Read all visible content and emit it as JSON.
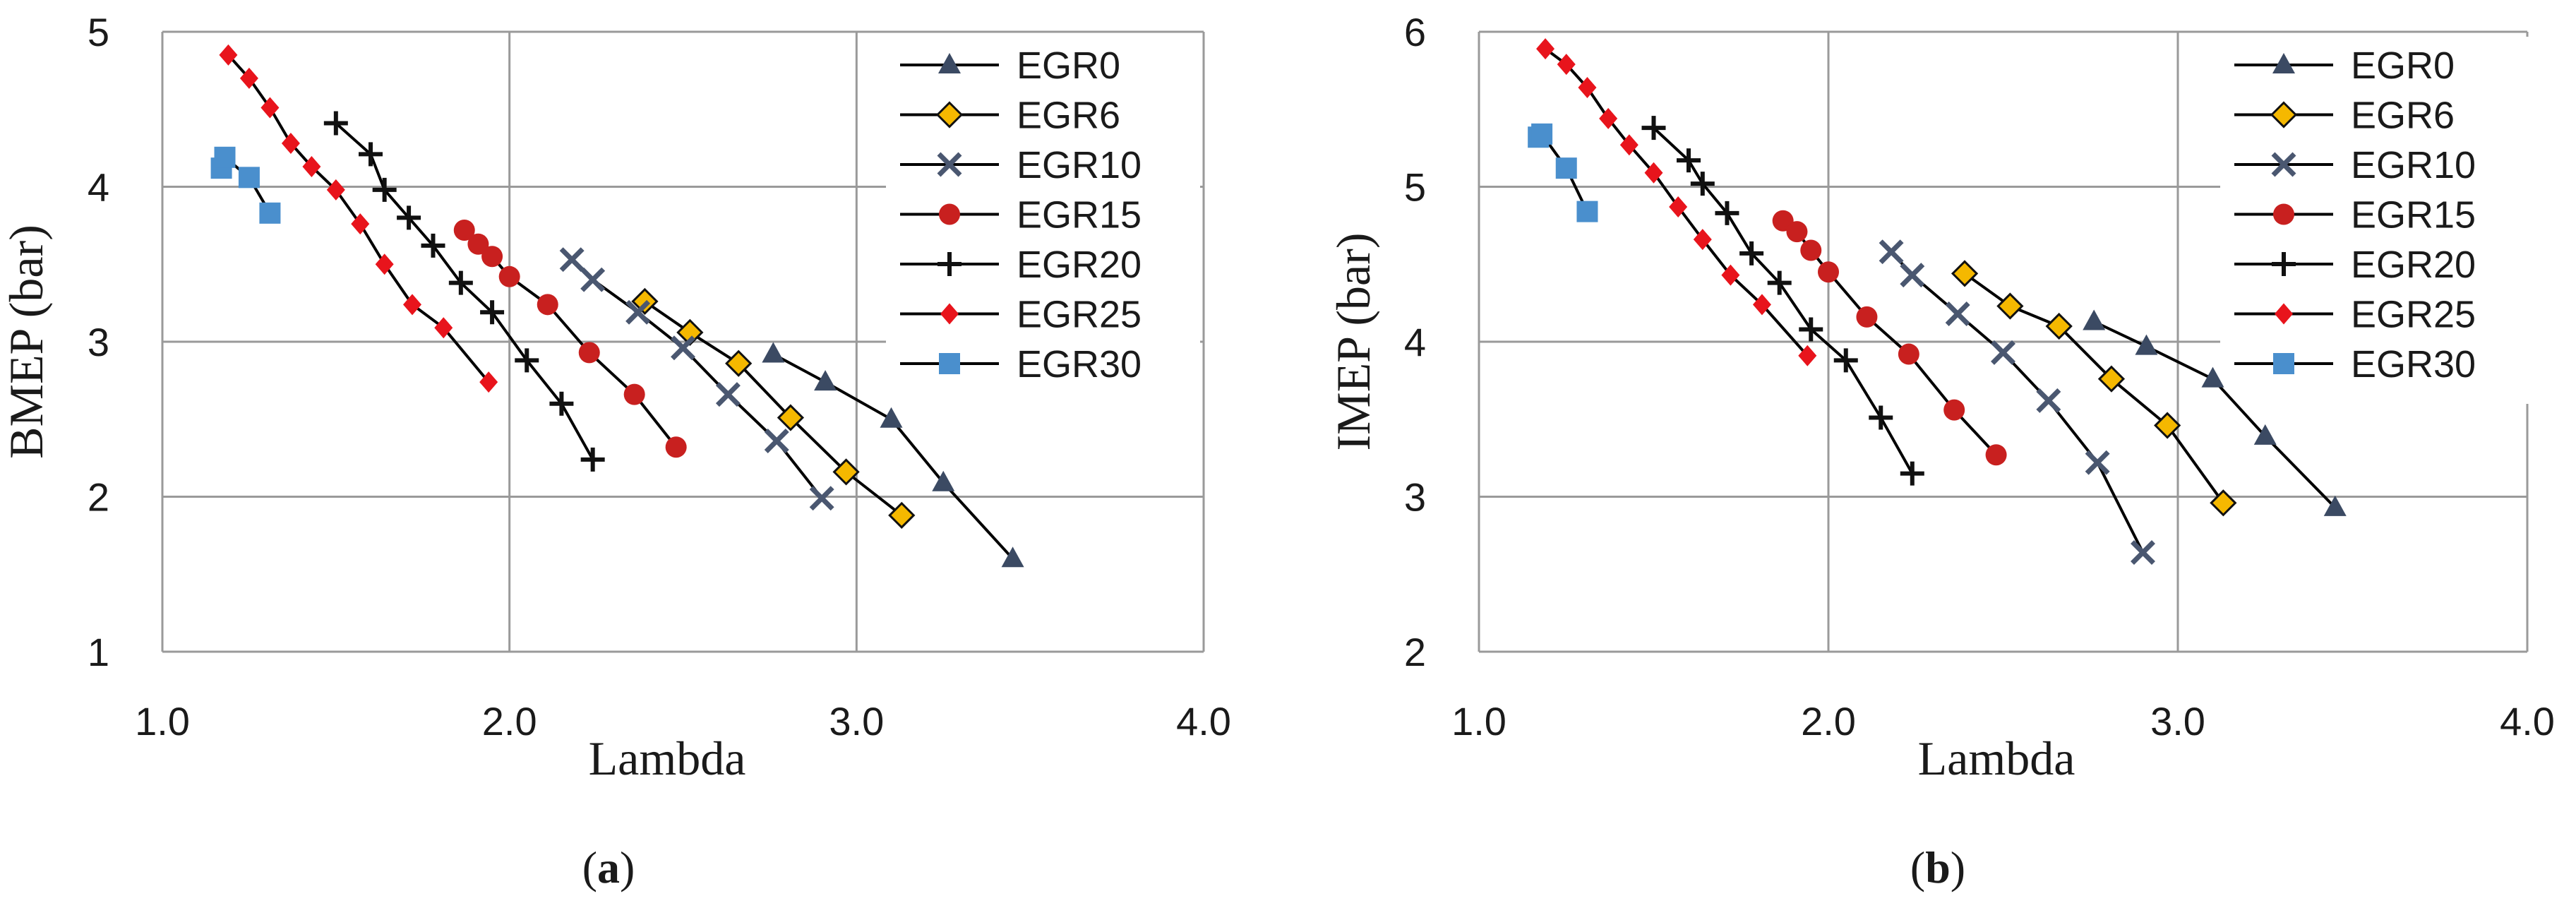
{
  "chart_data": [
    {
      "type": "line",
      "caption": {
        "open": "(",
        "letter": "a",
        "close": ")"
      },
      "xlabel": "Lambda",
      "ylabel": "BMEP (bar)",
      "xlim": [
        1.0,
        4.0
      ],
      "ylim": [
        1,
        5
      ],
      "xticks": [
        "1.0",
        "2.0",
        "3.0",
        "4.0"
      ],
      "yticks": [
        "1",
        "2",
        "3",
        "4",
        "5"
      ],
      "grid": true,
      "legend": "top-right",
      "series": [
        {
          "name": "EGR0",
          "marker": "triangle",
          "color": "#3b4a63",
          "points": [
            [
              2.76,
              2.92
            ],
            [
              2.91,
              2.74
            ],
            [
              3.1,
              2.5
            ],
            [
              3.25,
              2.09
            ],
            [
              3.45,
              1.6
            ]
          ]
        },
        {
          "name": "EGR6",
          "marker": "diamond",
          "color": "#f5b800",
          "points": [
            [
              2.39,
              3.26
            ],
            [
              2.52,
              3.06
            ],
            [
              2.66,
              2.86
            ],
            [
              2.81,
              2.51
            ],
            [
              2.97,
              2.16
            ],
            [
              3.13,
              1.88
            ]
          ]
        },
        {
          "name": "EGR10",
          "marker": "x",
          "color": "#4a5770",
          "points": [
            [
              2.18,
              3.53
            ],
            [
              2.24,
              3.4
            ],
            [
              2.37,
              3.19
            ],
            [
              2.5,
              2.96
            ],
            [
              2.63,
              2.66
            ],
            [
              2.77,
              2.36
            ],
            [
              2.9,
              1.99
            ]
          ]
        },
        {
          "name": "EGR15",
          "marker": "circle",
          "color": "#c8201f",
          "points": [
            [
              1.87,
              3.72
            ],
            [
              1.91,
              3.63
            ],
            [
              1.95,
              3.55
            ],
            [
              2.0,
              3.42
            ],
            [
              2.11,
              3.24
            ],
            [
              2.23,
              2.93
            ],
            [
              2.36,
              2.66
            ],
            [
              2.48,
              2.32
            ]
          ]
        },
        {
          "name": "EGR20",
          "marker": "plus",
          "color": "#111111",
          "points": [
            [
              1.5,
              4.41
            ],
            [
              1.6,
              4.21
            ],
            [
              1.64,
              3.98
            ],
            [
              1.71,
              3.8
            ],
            [
              1.78,
              3.62
            ],
            [
              1.86,
              3.38
            ],
            [
              1.95,
              3.19
            ],
            [
              2.05,
              2.88
            ],
            [
              2.15,
              2.6
            ],
            [
              2.24,
              2.24
            ]
          ]
        },
        {
          "name": "EGR25",
          "marker": "smalldiamond",
          "color": "#e8141c",
          "points": [
            [
              1.19,
              4.85
            ],
            [
              1.25,
              4.7
            ],
            [
              1.31,
              4.51
            ],
            [
              1.37,
              4.28
            ],
            [
              1.43,
              4.13
            ],
            [
              1.5,
              3.98
            ],
            [
              1.57,
              3.76
            ],
            [
              1.64,
              3.5
            ],
            [
              1.72,
              3.24
            ],
            [
              1.81,
              3.09
            ],
            [
              1.94,
              2.74
            ]
          ]
        },
        {
          "name": "EGR30",
          "marker": "square",
          "color": "#4a8fcd",
          "points": [
            [
              1.17,
              4.12
            ],
            [
              1.18,
              4.19
            ],
            [
              1.25,
              4.06
            ],
            [
              1.31,
              3.83
            ]
          ]
        }
      ]
    },
    {
      "type": "line",
      "caption": {
        "open": "(",
        "letter": "b",
        "close": ")"
      },
      "xlabel": "Lambda",
      "ylabel": "IMEP (bar)",
      "xlim": [
        1.0,
        4.0
      ],
      "ylim": [
        2,
        6
      ],
      "xticks": [
        "1.0",
        "2.0",
        "3.0",
        "4.0"
      ],
      "yticks": [
        "2",
        "3",
        "4",
        "5",
        "6"
      ],
      "grid": true,
      "legend": "top-right",
      "series": [
        {
          "name": "EGR0",
          "marker": "triangle",
          "color": "#3b4a63",
          "points": [
            [
              2.76,
              4.13
            ],
            [
              2.91,
              3.97
            ],
            [
              3.1,
              3.76
            ],
            [
              3.25,
              3.39
            ],
            [
              3.45,
              2.93
            ]
          ]
        },
        {
          "name": "EGR6",
          "marker": "diamond",
          "color": "#f5b800",
          "points": [
            [
              2.39,
              4.44
            ],
            [
              2.52,
              4.23
            ],
            [
              2.66,
              4.1
            ],
            [
              2.81,
              3.76
            ],
            [
              2.97,
              3.46
            ],
            [
              3.13,
              2.96
            ]
          ]
        },
        {
          "name": "EGR10",
          "marker": "x",
          "color": "#4a5770",
          "points": [
            [
              2.18,
              4.58
            ],
            [
              2.24,
              4.43
            ],
            [
              2.37,
              4.18
            ],
            [
              2.5,
              3.93
            ],
            [
              2.63,
              3.62
            ],
            [
              2.77,
              3.22
            ],
            [
              2.9,
              2.64
            ]
          ]
        },
        {
          "name": "EGR15",
          "marker": "circle",
          "color": "#c8201f",
          "points": [
            [
              1.87,
              4.78
            ],
            [
              1.91,
              4.71
            ],
            [
              1.95,
              4.59
            ],
            [
              2.0,
              4.45
            ],
            [
              2.11,
              4.16
            ],
            [
              2.23,
              3.92
            ],
            [
              2.36,
              3.56
            ],
            [
              2.48,
              3.27
            ]
          ]
        },
        {
          "name": "EGR20",
          "marker": "plus",
          "color": "#111111",
          "points": [
            [
              1.5,
              5.38
            ],
            [
              1.6,
              5.17
            ],
            [
              1.64,
              5.02
            ],
            [
              1.71,
              4.83
            ],
            [
              1.78,
              4.57
            ],
            [
              1.86,
              4.38
            ],
            [
              1.95,
              4.08
            ],
            [
              2.05,
              3.88
            ],
            [
              2.15,
              3.51
            ],
            [
              2.24,
              3.15
            ]
          ]
        },
        {
          "name": "EGR25",
          "marker": "smalldiamond",
          "color": "#e8141c",
          "points": [
            [
              1.19,
              5.89
            ],
            [
              1.25,
              5.79
            ],
            [
              1.31,
              5.64
            ],
            [
              1.37,
              5.44
            ],
            [
              1.43,
              5.27
            ],
            [
              1.5,
              5.09
            ],
            [
              1.57,
              4.87
            ],
            [
              1.64,
              4.66
            ],
            [
              1.72,
              4.43
            ],
            [
              1.81,
              4.24
            ],
            [
              1.94,
              3.91
            ]
          ]
        },
        {
          "name": "EGR30",
          "marker": "square",
          "color": "#4a8fcd",
          "points": [
            [
              1.17,
              5.32
            ],
            [
              1.18,
              5.34
            ],
            [
              1.25,
              5.12
            ],
            [
              1.31,
              4.84
            ]
          ]
        }
      ]
    }
  ]
}
